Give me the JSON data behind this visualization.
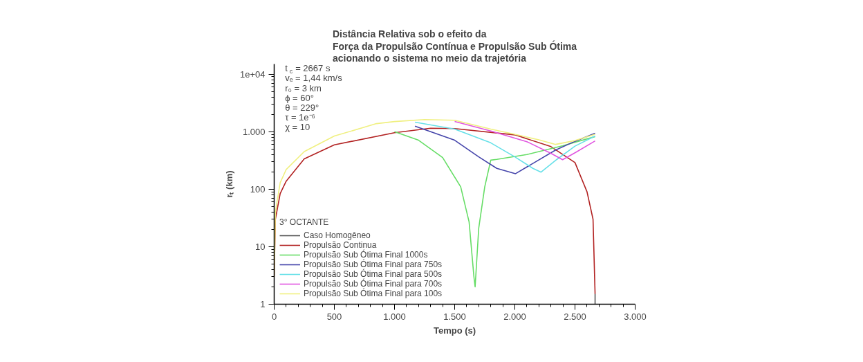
{
  "chart_data": {
    "type": "line",
    "title": "Distância Relativa sob o efeito da\nForça da Propulsão Contínua e Propulsão Sub Ótima\nacionando o sistema no meio da trajetória",
    "xlabel": "Tempo (s)",
    "ylabel": "rₜ (km)",
    "legend_title": "3° OCTANTE",
    "annotations": [
      "t$_{c}$ = 2667 s",
      "vₑ = 1,44 km/s",
      "r₀ = 3 km",
      "ϕ = 60°",
      "θ = 229°",
      "τ = 1e⁻⁶",
      "χ = 10"
    ],
    "log": "y",
    "grid": false,
    "legend": "bottom left",
    "line_style": "solid",
    "marker": "none",
    "xlim": [
      0,
      3000
    ],
    "xticks": [
      0,
      500,
      {
        "value": 1000,
        "label": "1.000"
      },
      {
        "value": 1500,
        "label": "1.500"
      },
      {
        "value": 2000,
        "label": "2.000"
      },
      {
        "value": 2500,
        "label": "2.500"
      },
      {
        "value": 3000,
        "label": "3.000"
      }
    ],
    "ylim": [
      1,
      15000
    ],
    "yticks": [
      1,
      10,
      100,
      {
        "value": 1000,
        "label": "1.000"
      },
      {
        "value": 10000,
        "label": "1e+04"
      }
    ],
    "series": [
      {
        "name": "Caso Homogêneo",
        "color": "#555555",
        "x": [
          2667,
          2667
        ],
        "values": [
          1.5,
          1
        ]
      },
      {
        "name": "Propulsão Continua",
        "color": "#b22222",
        "x": [
          0,
          10,
          50,
          100,
          250,
          500,
          1000,
          1300,
          1500,
          2000,
          2300,
          2500,
          2600,
          2650,
          2667
        ],
        "values": [
          3,
          30,
          84,
          138,
          336,
          590,
          960,
          1150,
          1130,
          880,
          550,
          290,
          90,
          30,
          1.5
        ]
      },
      {
        "name": "Propulsão Sub Ótima Final 1000s",
        "color": "#66dd66",
        "x": [
          1000,
          1200,
          1400,
          1550,
          1620,
          1660,
          1670,
          1700,
          1750,
          1800,
          1850,
          2100,
          2400,
          2667
        ],
        "values": [
          1000,
          710,
          355,
          110,
          27,
          3,
          2,
          21,
          110,
          320,
          330,
          400,
          570,
          820
        ]
      },
      {
        "name": "Propulsão Sub Ótima Final para 750s",
        "color": "#4444aa",
        "x": [
          1170,
          1500,
          1700,
          1850,
          2006,
          2150,
          2339,
          2500,
          2667
        ],
        "values": [
          1250,
          710,
          365,
          230,
          186,
          280,
          480,
          680,
          940
        ]
      },
      {
        "name": "Propulsão Sub Ótima Final para 500s",
        "color": "#66e0e8",
        "x": [
          1170,
          1500,
          1800,
          2000,
          2150,
          2218,
          2350,
          2500,
          2667
        ],
        "values": [
          1460,
          1110,
          640,
          365,
          230,
          198,
          330,
          560,
          840
        ]
      },
      {
        "name": "Propulsão Sub Ótima Final para 700s",
        "color": "#e055e0",
        "x": [
          1500,
          1800,
          2100,
          2300,
          2397,
          2500,
          2667
        ],
        "values": [
          1500,
          1030,
          670,
          420,
          325,
          430,
          690
        ]
      },
      {
        "name": "Propulsão Sub Ótima Final para 100s",
        "color": "#f0f080",
        "x": [
          0,
          10,
          50,
          100,
          250,
          500,
          850,
          1000,
          1250,
          1500,
          1800,
          2000,
          2200,
          2339,
          2500,
          2667
        ],
        "values": [
          3,
          40,
          130,
          220,
          450,
          840,
          1380,
          1500,
          1620,
          1580,
          1110,
          900,
          720,
          600,
          700,
          900
        ]
      }
    ]
  }
}
